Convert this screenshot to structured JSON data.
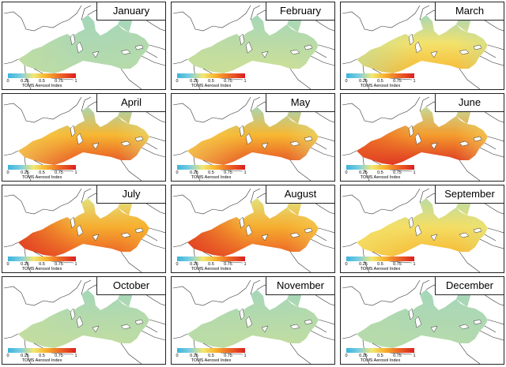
{
  "legend": {
    "title": "TOMS Aerosol Index",
    "ticks": [
      "0",
      "0.25",
      "0.5",
      "0.75",
      "1"
    ],
    "tick_values": [
      0,
      0.25,
      0.5,
      0.75,
      1
    ],
    "colors": [
      "#3ab4dc",
      "#7ccde0",
      "#f2e873",
      "#f7b731",
      "#ef6e26",
      "#d92020"
    ]
  },
  "colors": {
    "land_outline": "#333333",
    "panel_border": "#222222"
  },
  "panels": [
    {
      "month": "January",
      "south": 0.28,
      "west": 0.3,
      "east": 0.28,
      "north": 0.25,
      "has_legend": true
    },
    {
      "month": "February",
      "south": 0.32,
      "west": 0.3,
      "east": 0.28,
      "north": 0.25,
      "has_legend": true
    },
    {
      "month": "March",
      "south": 0.55,
      "west": 0.3,
      "east": 0.3,
      "north": 0.25,
      "has_legend": true
    },
    {
      "month": "April",
      "south": 0.85,
      "west": 0.45,
      "east": 0.35,
      "north": 0.25,
      "has_legend": true
    },
    {
      "month": "May",
      "south": 0.85,
      "west": 0.45,
      "east": 0.35,
      "north": 0.25,
      "has_legend": true
    },
    {
      "month": "June",
      "south": 0.95,
      "west": 0.85,
      "east": 0.4,
      "north": 0.3,
      "has_legend": true
    },
    {
      "month": "July",
      "south": 0.8,
      "west": 0.95,
      "east": 0.55,
      "north": 0.35,
      "has_legend": true
    },
    {
      "month": "August",
      "south": 0.8,
      "west": 0.95,
      "east": 0.45,
      "north": 0.35,
      "has_legend": true
    },
    {
      "month": "September",
      "south": 0.55,
      "west": 0.4,
      "east": 0.35,
      "north": 0.28,
      "has_legend": true
    },
    {
      "month": "October",
      "south": 0.3,
      "west": 0.3,
      "east": 0.28,
      "north": 0.25,
      "has_legend": true
    },
    {
      "month": "November",
      "south": 0.3,
      "west": 0.28,
      "east": 0.28,
      "north": 0.25,
      "has_legend": true
    },
    {
      "month": "December",
      "south": 0.28,
      "west": 0.28,
      "east": 0.26,
      "north": 0.25,
      "has_legend": true
    }
  ]
}
